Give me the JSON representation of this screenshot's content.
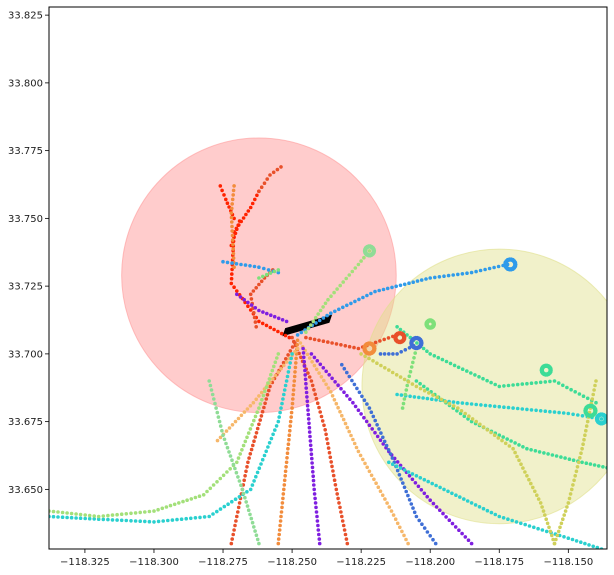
{
  "chart_data": {
    "type": "scatter",
    "title": "",
    "xlabel": "",
    "ylabel": "",
    "xlim": [
      -118.338,
      -118.136
    ],
    "ylim": [
      33.628,
      33.828
    ],
    "xticks": [
      -118.325,
      -118.3,
      -118.275,
      -118.25,
      -118.225,
      -118.2,
      -118.175,
      -118.15
    ],
    "xtick_labels": [
      "−118.325",
      "−118.300",
      "−118.275",
      "−118.250",
      "−118.225",
      "−118.200",
      "−118.175",
      "−118.150"
    ],
    "yticks": [
      33.65,
      33.675,
      33.7,
      33.725,
      33.75,
      33.775,
      33.8,
      33.825
    ],
    "ytick_labels": [
      "33.650",
      "33.675",
      "33.700",
      "33.725",
      "33.750",
      "33.775",
      "33.800",
      "33.825"
    ],
    "grid": false,
    "regions": [
      {
        "shape": "circle",
        "center": [
          -118.262,
          33.729
        ],
        "radius": 0.0497,
        "color": "#ff9999",
        "alpha": 0.5
      },
      {
        "shape": "circle",
        "center": [
          -118.175,
          33.688
        ],
        "radius": 0.0497,
        "color": "#e0e08a",
        "alpha": 0.45
      },
      {
        "shape": "rectangle",
        "corners": [
          [
            -118.2535,
            33.7065
          ],
          [
            -118.2365,
            33.7115
          ],
          [
            -118.2355,
            33.7145
          ],
          [
            -118.2525,
            33.7095
          ]
        ],
        "color": "#000000"
      }
    ],
    "tracks": [
      {
        "color": "#ff2200",
        "points": [
          [
            -118.251,
            33.706
          ],
          [
            -118.262,
            33.712
          ],
          [
            -118.272,
            33.726
          ],
          [
            -118.271,
            33.745
          ],
          [
            -118.265,
            33.754
          ],
          [
            -118.262,
            33.76
          ]
        ]
      },
      {
        "color": "#ff2200",
        "points": [
          [
            -118.272,
            33.74
          ],
          [
            -118.269,
            33.749
          ]
        ]
      },
      {
        "color": "#ff2200",
        "points": [
          [
            -118.271,
            33.75
          ],
          [
            -118.274,
            33.757
          ],
          [
            -118.276,
            33.762
          ]
        ]
      },
      {
        "color": "#e8502a",
        "points": [
          [
            -118.262,
            33.76
          ],
          [
            -118.258,
            33.766
          ],
          [
            -118.254,
            33.769
          ]
        ]
      },
      {
        "color": "#e8502a",
        "points": [
          [
            -118.263,
            33.71
          ],
          [
            -118.265,
            33.722
          ],
          [
            -118.26,
            33.728
          ],
          [
            -118.257,
            33.731
          ]
        ]
      },
      {
        "color": "#e8502a",
        "points": [
          [
            -118.25,
            33.706
          ],
          [
            -118.243,
            33.69
          ],
          [
            -118.238,
            33.672
          ],
          [
            -118.234,
            33.65
          ],
          [
            -118.23,
            33.63
          ]
        ]
      },
      {
        "color": "#e8502a",
        "points": [
          [
            -118.249,
            33.704
          ],
          [
            -118.258,
            33.688
          ],
          [
            -118.266,
            33.66
          ],
          [
            -118.272,
            33.63
          ]
        ]
      },
      {
        "color": "#e8502a",
        "points": [
          [
            -118.245,
            33.706
          ],
          [
            -118.226,
            33.702
          ],
          [
            -118.212,
            33.707
          ]
        ]
      },
      {
        "color": "#f28c3c",
        "points": [
          [
            -118.248,
            33.705
          ],
          [
            -118.25,
            33.68
          ],
          [
            -118.253,
            33.65
          ],
          [
            -118.255,
            33.63
          ]
        ]
      },
      {
        "color": "#f28c3c",
        "points": [
          [
            -118.271,
            33.732
          ],
          [
            -118.272,
            33.752
          ],
          [
            -118.271,
            33.762
          ]
        ]
      },
      {
        "color": "#f6b76a",
        "points": [
          [
            -118.247,
            33.704
          ],
          [
            -118.236,
            33.686
          ],
          [
            -118.226,
            33.664
          ],
          [
            -118.214,
            33.642
          ],
          [
            -118.208,
            33.63
          ]
        ]
      },
      {
        "color": "#f6b76a",
        "points": [
          [
            -118.248,
            33.702
          ],
          [
            -118.264,
            33.682
          ],
          [
            -118.277,
            33.668
          ]
        ]
      },
      {
        "color": "#7f1fe0",
        "points": [
          [
            -118.27,
            33.722
          ],
          [
            -118.262,
            33.716
          ],
          [
            -118.252,
            33.712
          ]
        ]
      },
      {
        "color": "#7f1fe0",
        "points": [
          [
            -118.243,
            33.7
          ],
          [
            -118.228,
            33.682
          ],
          [
            -118.215,
            33.664
          ],
          [
            -118.2,
            33.646
          ],
          [
            -118.185,
            33.63
          ]
        ]
      },
      {
        "color": "#7f1fe0",
        "points": [
          [
            -118.246,
            33.702
          ],
          [
            -118.244,
            33.676
          ],
          [
            -118.242,
            33.65
          ],
          [
            -118.24,
            33.63
          ]
        ]
      },
      {
        "color": "#3f6fd6",
        "points": [
          [
            -118.232,
            33.696
          ],
          [
            -118.222,
            33.68
          ],
          [
            -118.213,
            33.66
          ],
          [
            -118.205,
            33.64
          ],
          [
            -118.198,
            33.63
          ]
        ]
      },
      {
        "color": "#3f6fd6",
        "points": [
          [
            -118.218,
            33.7
          ],
          [
            -118.212,
            33.7
          ],
          [
            -118.206,
            33.703
          ]
        ]
      },
      {
        "color": "#2f9bea",
        "points": [
          [
            -118.248,
            33.707
          ],
          [
            -118.236,
            33.715
          ],
          [
            -118.22,
            33.723
          ],
          [
            -118.2,
            33.728
          ],
          [
            -118.185,
            33.73
          ],
          [
            -118.172,
            33.733
          ]
        ]
      },
      {
        "color": "#2f9bea",
        "points": [
          [
            -118.275,
            33.734
          ],
          [
            -118.262,
            33.732
          ],
          [
            -118.255,
            33.73
          ]
        ]
      },
      {
        "color": "#2ad0cf",
        "points": [
          [
            -118.338,
            33.64
          ],
          [
            -118.32,
            33.639
          ],
          [
            -118.3,
            33.638
          ],
          [
            -118.28,
            33.64
          ],
          [
            -118.265,
            33.65
          ],
          [
            -118.255,
            33.675
          ],
          [
            -118.25,
            33.7
          ]
        ]
      },
      {
        "color": "#2ad0cf",
        "points": [
          [
            -118.212,
            33.685
          ],
          [
            -118.19,
            33.682
          ],
          [
            -118.17,
            33.68
          ],
          [
            -118.15,
            33.678
          ],
          [
            -118.138,
            33.676
          ]
        ]
      },
      {
        "color": "#2ad0cf",
        "points": [
          [
            -118.215,
            33.66
          ],
          [
            -118.195,
            33.65
          ],
          [
            -118.175,
            33.64
          ],
          [
            -118.15,
            33.632
          ],
          [
            -118.138,
            33.628
          ]
        ]
      },
      {
        "color": "#3ddc97",
        "points": [
          [
            -118.205,
            33.69
          ],
          [
            -118.185,
            33.675
          ],
          [
            -118.165,
            33.665
          ],
          [
            -118.145,
            33.66
          ],
          [
            -118.136,
            33.658
          ]
        ]
      },
      {
        "color": "#3ddc97",
        "points": [
          [
            -118.212,
            33.71
          ],
          [
            -118.2,
            33.7
          ],
          [
            -118.175,
            33.688
          ],
          [
            -118.155,
            33.69
          ],
          [
            -118.14,
            33.682
          ]
        ]
      },
      {
        "color": "#7ee07a",
        "points": [
          [
            -118.262,
            33.728
          ],
          [
            -118.255,
            33.731
          ]
        ]
      },
      {
        "color": "#7ee07a",
        "points": [
          [
            -118.205,
            33.702
          ],
          [
            -118.208,
            33.69
          ],
          [
            -118.21,
            33.68
          ]
        ]
      },
      {
        "color": "#a3e07a",
        "points": [
          [
            -118.338,
            33.642
          ],
          [
            -118.32,
            33.64
          ],
          [
            -118.3,
            33.642
          ],
          [
            -118.282,
            33.648
          ],
          [
            -118.27,
            33.66
          ],
          [
            -118.262,
            33.68
          ],
          [
            -118.255,
            33.7
          ]
        ]
      },
      {
        "color": "#a3e07a",
        "points": [
          [
            -118.245,
            33.708
          ],
          [
            -118.237,
            33.72
          ],
          [
            -118.226,
            33.733
          ],
          [
            -118.222,
            33.738
          ]
        ]
      },
      {
        "color": "#cfd05a",
        "points": [
          [
            -118.225,
            33.7
          ],
          [
            -118.205,
            33.688
          ],
          [
            -118.19,
            33.68
          ],
          [
            -118.17,
            33.665
          ],
          [
            -118.16,
            33.645
          ],
          [
            -118.155,
            33.63
          ]
        ]
      },
      {
        "color": "#cfd05a",
        "points": [
          [
            -118.14,
            33.69
          ],
          [
            -118.145,
            33.665
          ],
          [
            -118.15,
            33.645
          ],
          [
            -118.155,
            33.63
          ]
        ]
      },
      {
        "color": "#8fdc96",
        "points": [
          [
            -118.28,
            33.69
          ],
          [
            -118.275,
            33.67
          ],
          [
            -118.268,
            33.65
          ],
          [
            -118.262,
            33.63
          ]
        ]
      }
    ],
    "loops": [
      {
        "color": "#2f9bea",
        "center": [
          -118.171,
          33.733
        ],
        "r": 0.0018
      },
      {
        "color": "#3f6fd6",
        "center": [
          -118.205,
          33.704
        ],
        "r": 0.0018
      },
      {
        "color": "#f28c3c",
        "center": [
          -118.222,
          33.702
        ],
        "r": 0.0018
      },
      {
        "color": "#e8502a",
        "center": [
          -118.211,
          33.706
        ],
        "r": 0.0016
      },
      {
        "color": "#3ddc97",
        "center": [
          -118.158,
          33.694
        ],
        "r": 0.0016
      },
      {
        "color": "#3ddc97",
        "center": [
          -118.142,
          33.679
        ],
        "r": 0.0018
      },
      {
        "color": "#2ad0cf",
        "center": [
          -118.138,
          33.676
        ],
        "r": 0.0016
      },
      {
        "color": "#8fdc96",
        "center": [
          -118.222,
          33.738
        ],
        "r": 0.0016
      },
      {
        "color": "#7ee07a",
        "center": [
          -118.2,
          33.711
        ],
        "r": 0.0013
      }
    ]
  }
}
